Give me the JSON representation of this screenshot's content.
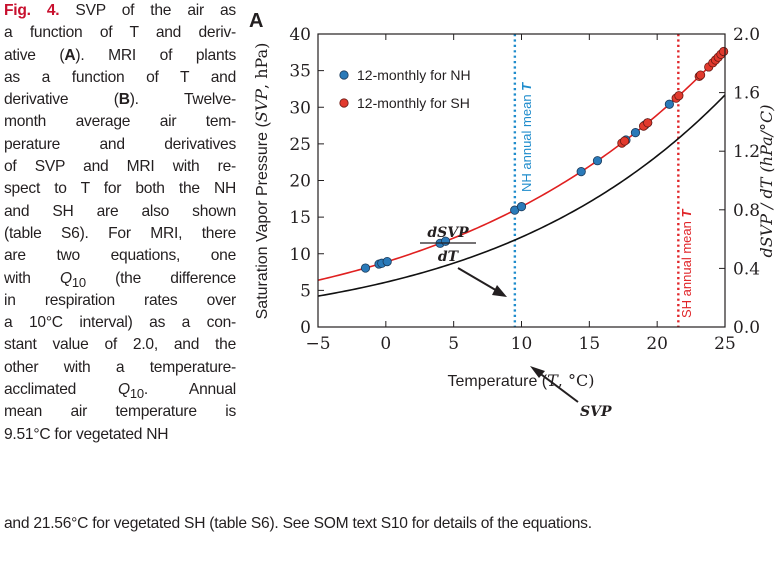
{
  "caption": {
    "fig_label": "Fig. 4.",
    "lines": [
      " SVP of the air as",
      "a function of T and deriv-",
      "ative (",
      "). MRI of plants",
      "as a function of T and",
      "derivative (",
      "). Twelve-",
      "month average air tem-",
      "perature and derivatives",
      "of SVP and MRI with re-",
      "spect to T for both the NH",
      "and SH are also shown",
      "(table S6). For MRI, there",
      "are two equations, one",
      "with ",
      " (the difference",
      "in respiration rates over",
      "a 10°C interval) as a con-",
      "stant value of 2.0, and the",
      "other with a temperature-",
      "acclimated ",
      ". Annual",
      "mean air temperature is",
      "9.51°C for vegetated NH"
    ],
    "ref_a": "A",
    "ref_b": "B",
    "q10_q": "Q",
    "q10_sub": "10",
    "last_line": "and 21.56°C for vegetated SH (table S6). See SOM text S10 for details of the equations."
  },
  "panel_label": "A",
  "chart_data": {
    "type": "line",
    "xlabel_prefix": "Temperature (",
    "xlabel_var": "T",
    "xlabel_suffix": ", °C)",
    "ylabel_prefix": "Saturation Vapor Pressure (",
    "ylabel_var": "SVP",
    "ylabel_suffix": ", hPa)",
    "y2label": "dSVP / dT (hPa/°C)",
    "xlim": [
      -5,
      25
    ],
    "ylim": [
      0,
      40
    ],
    "y2lim": [
      0,
      2.0
    ],
    "xticks": [
      -5,
      0,
      5,
      10,
      15,
      20,
      25
    ],
    "xtick_labels": [
      "−5",
      "0",
      "5",
      "10",
      "15",
      "20",
      "25"
    ],
    "yticks": [
      0,
      5,
      10,
      15,
      20,
      25,
      30,
      35,
      40
    ],
    "ytick_labels": [
      "0",
      "5",
      "10",
      "15",
      "20",
      "25",
      "30",
      "35",
      "40"
    ],
    "y2ticks": [
      0.0,
      0.4,
      0.8,
      1.2,
      1.6,
      2.0
    ],
    "y2tick_labels": [
      "0.0",
      "0.4",
      "0.8",
      "1.2",
      "1.6",
      "2.0"
    ],
    "legend": [
      {
        "label": "12-monthly for NH",
        "color": "#2a7ab9"
      },
      {
        "label": "12-monthly for SH",
        "color": "#e23a2e"
      }
    ],
    "series": [
      {
        "name": "SVP",
        "axis": "left",
        "color": "#111111",
        "curve": "svp"
      },
      {
        "name": "dSVP/dT",
        "axis": "right",
        "color": "#e02020",
        "curve": "dsvp"
      }
    ],
    "nh_points_x": [
      -1.5,
      -0.5,
      -0.3,
      0.1,
      4.0,
      4.4,
      9.5,
      10.0,
      14.4,
      15.6,
      17.7,
      18.4,
      19.1,
      19.3,
      20.9
    ],
    "sh_points_x": [
      17.4,
      17.6,
      19.0,
      19.3,
      21.4,
      21.6,
      23.1,
      23.2,
      23.8,
      24.1,
      24.3,
      24.5,
      24.7,
      24.9
    ],
    "vlines": [
      {
        "x": 9.51,
        "color": "#1f8ccc",
        "label_prefix": "NH annual mean ",
        "label_var": "T"
      },
      {
        "x": 21.56,
        "color": "#e0262a",
        "label_prefix": "SH annual mean ",
        "label_var": "T"
      }
    ],
    "annotations": {
      "dsvp_num": "dSVP",
      "dsvp_den": "dT",
      "svp_label": "SVP"
    }
  }
}
